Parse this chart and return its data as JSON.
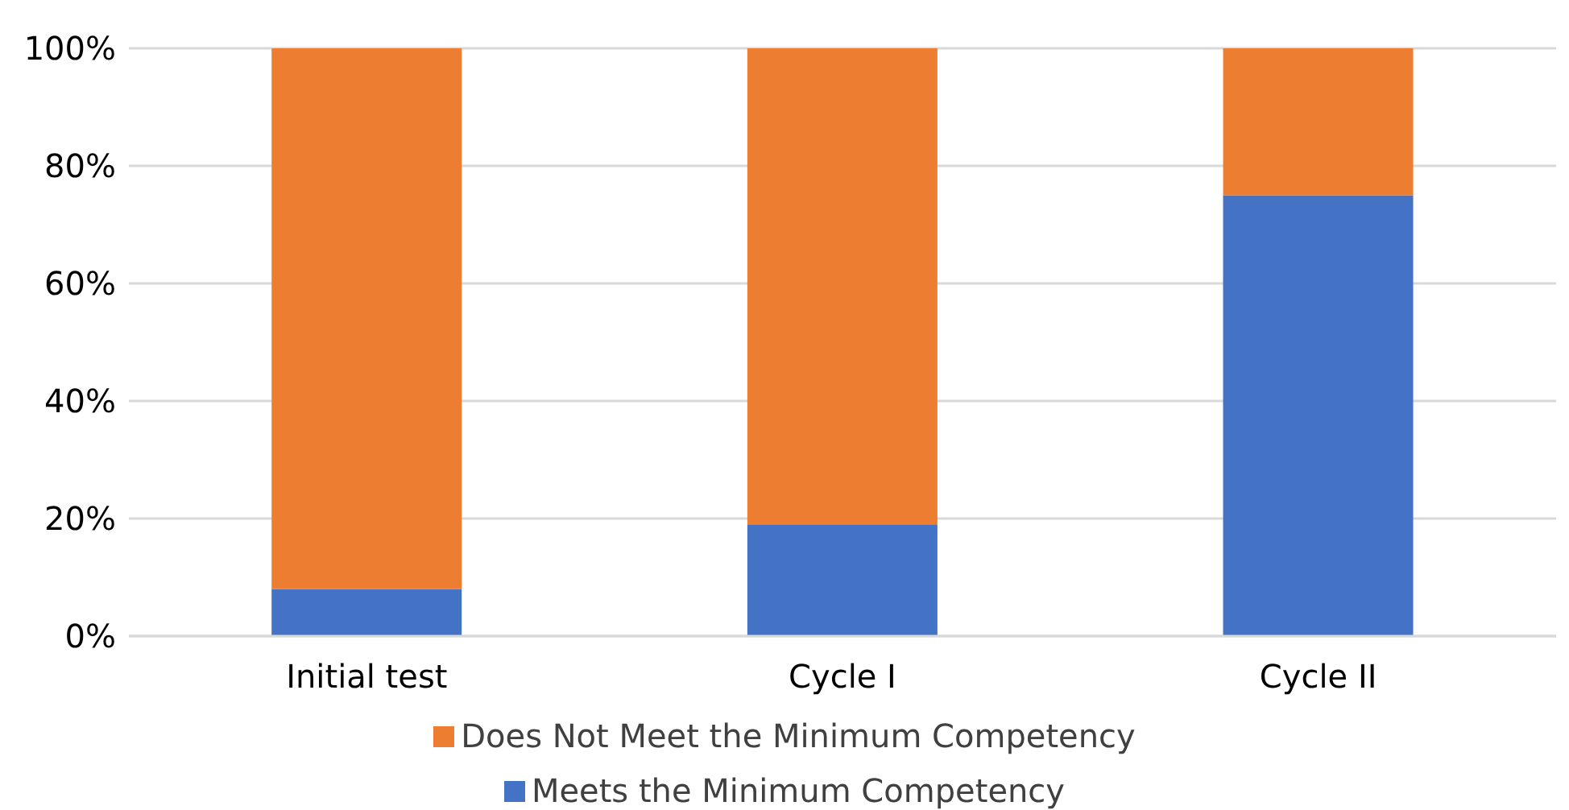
{
  "chart_data": {
    "type": "bar",
    "stacked": true,
    "categories": [
      "Initial test",
      "Cycle I",
      "Cycle II"
    ],
    "series": [
      {
        "name": "Meets the Minimum Competency",
        "color": "#4472c4",
        "values": [
          8,
          19,
          75
        ]
      },
      {
        "name": "Does Not Meet the Minimum Competency",
        "color": "#ed7d31",
        "values": [
          92,
          81,
          25
        ]
      }
    ],
    "ylim": [
      0,
      100
    ],
    "yticks": [
      {
        "value": 0,
        "label": "0%"
      },
      {
        "value": 20,
        "label": "20%"
      },
      {
        "value": 40,
        "label": "40%"
      },
      {
        "value": 60,
        "label": "60%"
      },
      {
        "value": 80,
        "label": "80%"
      },
      {
        "value": 100,
        "label": "100%"
      }
    ],
    "grid": "y",
    "legend": "bottom"
  }
}
